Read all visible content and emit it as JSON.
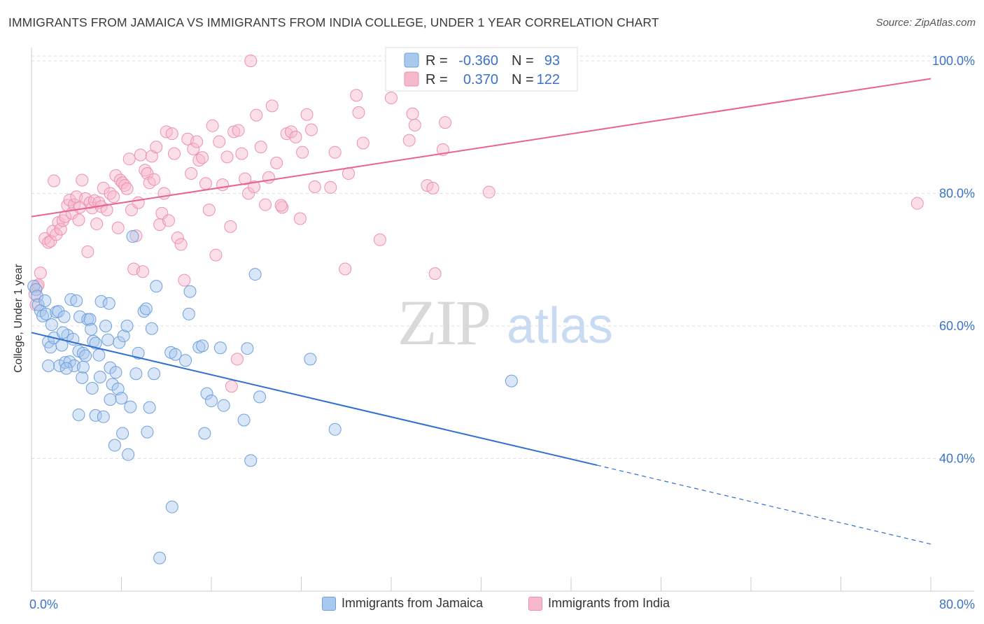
{
  "title": "IMMIGRANTS FROM JAMAICA VS IMMIGRANTS FROM INDIA COLLEGE, UNDER 1 YEAR CORRELATION CHART",
  "source": "Source: ZipAtlas.com",
  "watermark": {
    "zip": "ZIP",
    "atlas": "atlas"
  },
  "stats_legend": {
    "jamaica": {
      "r_label": "R =",
      "r_value": "-0.360",
      "n_label": "N =",
      "n_value": "93"
    },
    "india": {
      "r_label": "R =",
      "r_value": "0.370",
      "n_label": "N =",
      "n_value": "122"
    }
  },
  "bottom_legend": {
    "jamaica": "Immigrants from Jamaica",
    "india": "Immigrants from India"
  },
  "colors": {
    "jamaica_fill": "#a9c8ee",
    "jamaica_stroke": "#6f9fdc",
    "jamaica_line": "#2f6fcf",
    "india_fill": "#f6b8cb",
    "india_stroke": "#ee90ad",
    "india_line": "#e8638f",
    "axis_label": "#3a73c9",
    "grid": "#dddddd"
  },
  "chart_data": {
    "type": "scatter",
    "title": "IMMIGRANTS FROM JAMAICA VS IMMIGRANTS FROM INDIA COLLEGE, UNDER 1 YEAR CORRELATION CHART",
    "xlabel": "",
    "ylabel": "College, Under 1 year",
    "xlim": [
      0,
      80
    ],
    "ylim": [
      20,
      102
    ],
    "x_ticks": [
      0,
      8,
      16,
      24,
      32,
      40,
      48,
      56,
      64,
      72,
      80
    ],
    "x_tick_labels": [
      "0.0%",
      "",
      "",
      "",
      "",
      "",
      "",
      "",
      "",
      "",
      "80.0%"
    ],
    "y_ticks": [
      40,
      60,
      80,
      100
    ],
    "y_tick_labels": [
      "40.0%",
      "60.0%",
      "80.0%",
      "100.0%"
    ],
    "grid": true,
    "legend_position": "top-center",
    "series": [
      {
        "name": "Immigrants from Jamaica",
        "r": -0.36,
        "n": 93,
        "trend": {
          "x0": 0,
          "y0": 59.0,
          "x1": 50.3,
          "y1": 39.0,
          "dashed_to_x": 80,
          "dashed_to_y": 27.1
        },
        "points": [
          [
            0.2,
            66
          ],
          [
            0.4,
            65.5
          ],
          [
            0.5,
            64.5
          ],
          [
            0.6,
            63.2
          ],
          [
            0.8,
            62.3
          ],
          [
            1.0,
            61.5
          ],
          [
            1.2,
            63.8
          ],
          [
            1.3,
            61.8
          ],
          [
            1.5,
            57.6
          ],
          [
            1.7,
            56.8
          ],
          [
            1.8,
            60.2
          ],
          [
            2.0,
            58.2
          ],
          [
            2.2,
            62.1
          ],
          [
            2.4,
            62.2
          ],
          [
            2.5,
            54.0
          ],
          [
            2.7,
            57.1
          ],
          [
            2.9,
            61.4
          ],
          [
            3.0,
            54.5
          ],
          [
            3.2,
            58.6
          ],
          [
            3.4,
            54.6
          ],
          [
            3.5,
            64.0
          ],
          [
            3.7,
            58.0
          ],
          [
            3.8,
            54.0
          ],
          [
            4.0,
            63.8
          ],
          [
            4.2,
            56.2
          ],
          [
            4.3,
            61.4
          ],
          [
            4.5,
            52.2
          ],
          [
            4.6,
            55.9
          ],
          [
            4.8,
            55.5
          ],
          [
            5.0,
            61.0
          ],
          [
            5.2,
            61.0
          ],
          [
            5.3,
            59.5
          ],
          [
            5.4,
            50.6
          ],
          [
            5.5,
            57.7
          ],
          [
            5.7,
            46.5
          ],
          [
            6.0,
            55.6
          ],
          [
            6.1,
            52.3
          ],
          [
            6.2,
            63.7
          ],
          [
            6.4,
            46.3
          ],
          [
            6.6,
            60.0
          ],
          [
            6.8,
            57.9
          ],
          [
            6.9,
            63.4
          ],
          [
            7.0,
            53.7
          ],
          [
            7.2,
            51.2
          ],
          [
            7.4,
            42.0
          ],
          [
            7.5,
            53.0
          ],
          [
            7.7,
            50.5
          ],
          [
            7.8,
            57.5
          ],
          [
            8.0,
            49.1
          ],
          [
            8.1,
            43.8
          ],
          [
            8.2,
            58.5
          ],
          [
            8.5,
            60.0
          ],
          [
            8.6,
            40.6
          ],
          [
            8.8,
            47.8
          ],
          [
            9.0,
            73.5
          ],
          [
            9.5,
            55.9
          ],
          [
            10.0,
            62.2
          ],
          [
            10.2,
            62.6
          ],
          [
            10.3,
            44.0
          ],
          [
            10.5,
            47.7
          ],
          [
            10.7,
            59.6
          ],
          [
            10.9,
            52.8
          ],
          [
            11.1,
            66.0
          ],
          [
            11.4,
            25.0
          ],
          [
            12.4,
            56.0
          ],
          [
            12.5,
            32.7
          ],
          [
            12.8,
            55.7
          ],
          [
            13.7,
            54.8
          ],
          [
            14.0,
            61.8
          ],
          [
            14.1,
            65.2
          ],
          [
            14.9,
            56.8
          ],
          [
            15.2,
            57.0
          ],
          [
            15.4,
            43.8
          ],
          [
            15.6,
            49.8
          ],
          [
            16.0,
            48.7
          ],
          [
            16.8,
            56.7
          ],
          [
            17.1,
            48.0
          ],
          [
            18.9,
            45.8
          ],
          [
            19.2,
            56.6
          ],
          [
            19.5,
            39.7
          ],
          [
            19.9,
            67.8
          ],
          [
            20.3,
            49.3
          ],
          [
            24.8,
            55.0
          ],
          [
            27.0,
            44.4
          ],
          [
            42.7,
            51.7
          ],
          [
            4.2,
            46.6
          ],
          [
            1.5,
            54.0
          ],
          [
            2.8,
            59.0
          ],
          [
            5.7,
            57.4
          ],
          [
            7.0,
            48.9
          ],
          [
            3.1,
            53.6
          ],
          [
            9.3,
            52.8
          ],
          [
            4.6,
            53.8
          ]
        ]
      },
      {
        "name": "Immigrants from India",
        "r": 0.37,
        "n": 122,
        "trend": {
          "x0": 0,
          "y0": 76.5,
          "x1": 80,
          "y1": 97.3
        },
        "points": [
          [
            0.3,
            64.8
          ],
          [
            0.4,
            63.2
          ],
          [
            0.5,
            66.0
          ],
          [
            0.8,
            68.0
          ],
          [
            1.2,
            73.2
          ],
          [
            1.5,
            72.6
          ],
          [
            1.7,
            72.8
          ],
          [
            1.9,
            74.3
          ],
          [
            2.2,
            73.8
          ],
          [
            2.4,
            75.6
          ],
          [
            2.6,
            74.6
          ],
          [
            2.8,
            75.9
          ],
          [
            3.0,
            76.5
          ],
          [
            3.2,
            78.2
          ],
          [
            3.4,
            79.0
          ],
          [
            3.6,
            77.0
          ],
          [
            3.8,
            78.3
          ],
          [
            4.0,
            79.5
          ],
          [
            4.2,
            76.0
          ],
          [
            4.3,
            77.9
          ],
          [
            4.5,
            82.0
          ],
          [
            4.8,
            79.2
          ],
          [
            5.0,
            71.2
          ],
          [
            5.2,
            78.6
          ],
          [
            5.4,
            77.8
          ],
          [
            5.6,
            78.9
          ],
          [
            5.8,
            75.4
          ],
          [
            6.0,
            78.6
          ],
          [
            6.2,
            78.0
          ],
          [
            6.4,
            80.8
          ],
          [
            6.7,
            77.5
          ],
          [
            7.0,
            80.0
          ],
          [
            7.3,
            79.5
          ],
          [
            7.5,
            82.7
          ],
          [
            7.7,
            74.8
          ],
          [
            7.9,
            82.0
          ],
          [
            8.1,
            81.6
          ],
          [
            8.3,
            81.2
          ],
          [
            8.5,
            80.7
          ],
          [
            8.7,
            85.2
          ],
          [
            8.9,
            77.5
          ],
          [
            9.1,
            68.6
          ],
          [
            9.3,
            73.6
          ],
          [
            9.5,
            78.6
          ],
          [
            9.7,
            85.8
          ],
          [
            9.9,
            68.2
          ],
          [
            10.1,
            83.5
          ],
          [
            10.3,
            83.0
          ],
          [
            10.5,
            81.6
          ],
          [
            10.7,
            85.6
          ],
          [
            10.9,
            82.1
          ],
          [
            11.1,
            87.0
          ],
          [
            11.4,
            75.3
          ],
          [
            11.6,
            77.0
          ],
          [
            11.8,
            80.0
          ],
          [
            12.0,
            89.3
          ],
          [
            12.2,
            75.9
          ],
          [
            12.5,
            89.0
          ],
          [
            12.7,
            86.0
          ],
          [
            13.0,
            73.3
          ],
          [
            13.3,
            72.3
          ],
          [
            13.6,
            66.9
          ],
          [
            13.9,
            88.2
          ],
          [
            14.2,
            83.0
          ],
          [
            14.4,
            86.7
          ],
          [
            14.7,
            87.8
          ],
          [
            14.9,
            85.0
          ],
          [
            15.2,
            85.4
          ],
          [
            15.5,
            81.5
          ],
          [
            15.8,
            77.5
          ],
          [
            16.1,
            90.2
          ],
          [
            16.4,
            70.7
          ],
          [
            16.7,
            87.8
          ],
          [
            17.0,
            81.3
          ],
          [
            17.4,
            85.5
          ],
          [
            17.7,
            75.0
          ],
          [
            18.0,
            89.3
          ],
          [
            18.4,
            89.5
          ],
          [
            18.7,
            86.0
          ],
          [
            19.0,
            82.2
          ],
          [
            19.3,
            80.0
          ],
          [
            19.5,
            100.0
          ],
          [
            19.8,
            81.0
          ],
          [
            20.0,
            91.8
          ],
          [
            20.4,
            87.0
          ],
          [
            20.8,
            78.3
          ],
          [
            21.1,
            82.4
          ],
          [
            21.4,
            93.2
          ],
          [
            21.8,
            84.6
          ],
          [
            22.3,
            77.9
          ],
          [
            22.7,
            89.0
          ],
          [
            23.1,
            89.3
          ],
          [
            23.5,
            88.5
          ],
          [
            23.9,
            76.2
          ],
          [
            24.1,
            86.2
          ],
          [
            24.5,
            91.9
          ],
          [
            24.9,
            89.6
          ],
          [
            25.2,
            81.0
          ],
          [
            27.0,
            86.2
          ],
          [
            27.9,
            68.6
          ],
          [
            28.2,
            83.0
          ],
          [
            28.9,
            94.8
          ],
          [
            29.1,
            92.2
          ],
          [
            29.5,
            87.6
          ],
          [
            31.0,
            73.0
          ],
          [
            32.0,
            94.4
          ],
          [
            33.6,
            88.0
          ],
          [
            33.9,
            92.0
          ],
          [
            34.1,
            90.3
          ],
          [
            35.2,
            81.2
          ],
          [
            35.7,
            80.8
          ],
          [
            35.9,
            67.9
          ],
          [
            36.6,
            86.6
          ],
          [
            36.8,
            90.7
          ],
          [
            40.7,
            80.2
          ],
          [
            78.8,
            78.5
          ],
          [
            0.6,
            66.2
          ],
          [
            2.0,
            81.9
          ],
          [
            18.3,
            55.0
          ],
          [
            17.8,
            50.9
          ],
          [
            22.2,
            78.2
          ],
          [
            26.6,
            80.9
          ]
        ]
      }
    ]
  }
}
